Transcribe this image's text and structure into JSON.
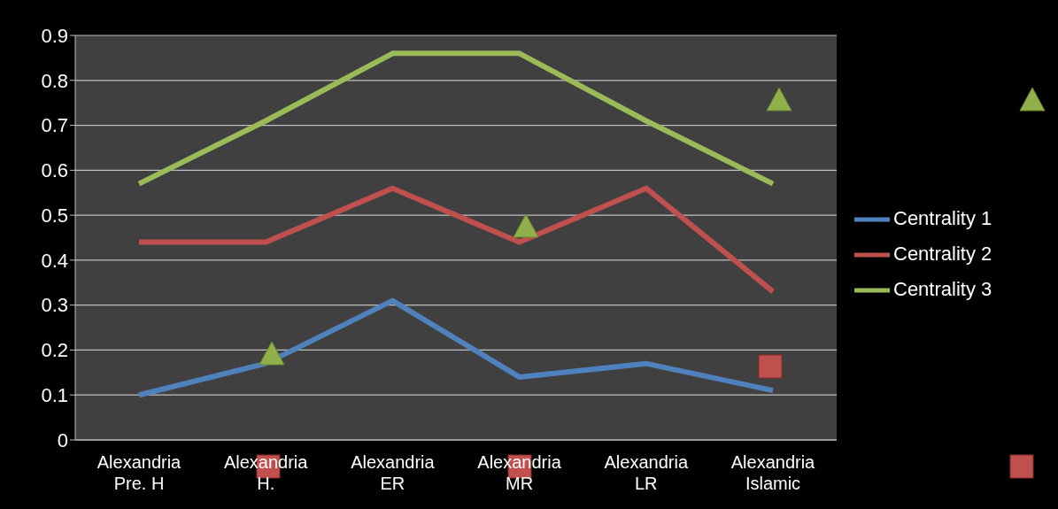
{
  "chart_data": {
    "type": "line",
    "categories": [
      "Alexandria Pre. H",
      "Alexandria H.",
      "Alexandria ER",
      "Alexandria MR",
      "Alexandria LR",
      "Alexandria Islamic"
    ],
    "series": [
      {
        "name": "Centrality 1",
        "color": "#4f81bd",
        "values": [
          0.1,
          0.17,
          0.31,
          0.14,
          0.17,
          0.11
        ]
      },
      {
        "name": "Centrality 2",
        "color": "#c0504d",
        "values": [
          0.44,
          0.44,
          0.56,
          0.44,
          0.56,
          0.33
        ]
      },
      {
        "name": "Centrality 3",
        "color": "#9bbb59",
        "values": [
          0.57,
          0.71,
          0.86,
          0.86,
          0.71,
          0.57
        ]
      }
    ],
    "ylim": [
      0,
      0.9
    ],
    "yticks": [
      0,
      0.1,
      0.2,
      0.3,
      0.4,
      0.5,
      0.6,
      0.7,
      0.8,
      0.9
    ],
    "grid": "y",
    "legend": "right",
    "marker": "none"
  }
}
